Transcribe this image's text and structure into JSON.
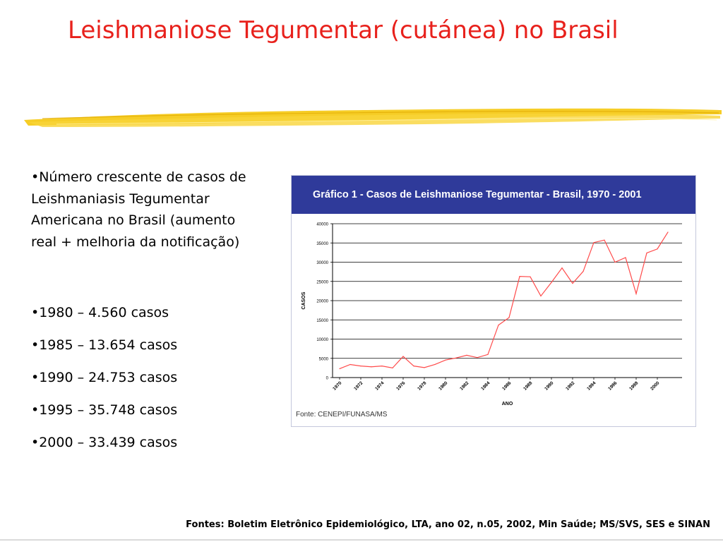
{
  "slide": {
    "title": "Leishmaniose Tegumentar (cutánea) no Brasil",
    "bullets": [
      "•Número crescente de casos de Leishmaniasis Tegumentar Americana no Brasil (aumento real + melhoria da notificação)",
      "•1980 – 4.560 casos",
      "•1985 – 13.654 casos",
      "•1990 – 24.753 casos",
      "•1995 – 35.748 casos",
      "•2000 – 33.439 casos"
    ],
    "footer": "Fontes: Boletim Eletrônico Epidemiológico, LTA, ano 02, n.05, 2002, Min Saúde; MS/SVS, SES e SINAN",
    "brush_color": "#f5c400"
  },
  "chart_data": {
    "type": "line",
    "title": "Gráfico 1 - Casos de Leishmaniose Tegumentar - Brasil, 1970 - 2001",
    "xlabel": "ANO",
    "ylabel": "CASOS",
    "source": "Fonte: CENEPI/FUNASA/MS",
    "x": [
      1970,
      1971,
      1972,
      1973,
      1974,
      1975,
      1976,
      1977,
      1978,
      1979,
      1980,
      1981,
      1982,
      1983,
      1984,
      1985,
      1986,
      1987,
      1988,
      1989,
      1990,
      1991,
      1992,
      1993,
      1994,
      1995,
      1996,
      1997,
      1998,
      1999,
      2000,
      2001
    ],
    "x_tick_labels": [
      "1970",
      "1972",
      "1974",
      "1976",
      "1978",
      "1980",
      "1982",
      "1984",
      "1986",
      "1988",
      "1990",
      "1992",
      "1994",
      "1996",
      "1998",
      "2000"
    ],
    "series": [
      {
        "values": [
          2300,
          3400,
          3000,
          2800,
          3000,
          2500,
          5500,
          3000,
          2600,
          3400,
          4560,
          5100,
          5800,
          5200,
          6000,
          13654,
          15600,
          26300,
          26200,
          21200,
          24753,
          28500,
          24500,
          27600,
          35100,
          35748,
          30000,
          31200,
          21800,
          32400,
          33439,
          37800
        ],
        "color": "#ff4b4b"
      }
    ],
    "ylim": [
      0,
      40000
    ],
    "y_ticks": [
      0,
      5000,
      10000,
      15000,
      20000,
      25000,
      30000,
      35000,
      40000
    ],
    "grid": true,
    "header_color": "#2f3a9a"
  }
}
